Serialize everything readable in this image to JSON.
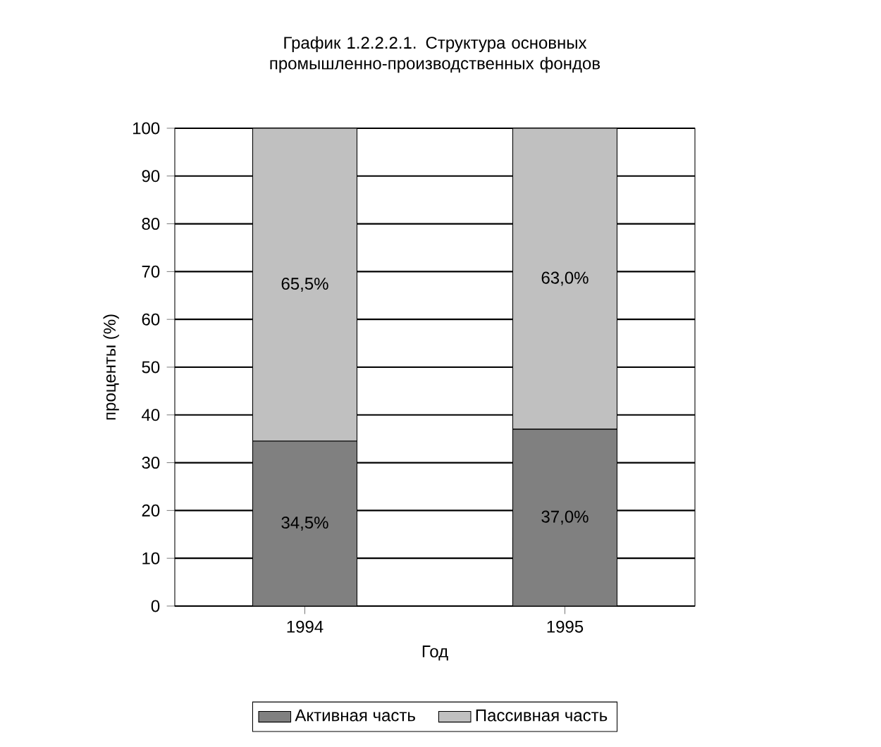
{
  "chart_data": {
    "type": "bar",
    "stacked": true,
    "title": "График 1.2.2.2.1.  Структура основных промышленно-производственных фондов",
    "xlabel": "Год",
    "ylabel": "проценты (%)",
    "categories": [
      "1994",
      "1995"
    ],
    "series": [
      {
        "name": "Активная часть",
        "color": "#808080",
        "values": [
          34.5,
          37.0
        ],
        "value_labels": [
          "34,5%",
          "37,0%"
        ]
      },
      {
        "name": "Пассивная часть",
        "color": "#c0c0c0",
        "values": [
          65.5,
          63.0
        ],
        "value_labels": [
          "65,5%",
          "63,0%"
        ]
      }
    ],
    "ylim": [
      0,
      100
    ],
    "yticks": [
      0,
      10,
      20,
      30,
      40,
      50,
      60,
      70,
      80,
      90,
      100
    ],
    "grid": "y",
    "legend": "bottom"
  }
}
